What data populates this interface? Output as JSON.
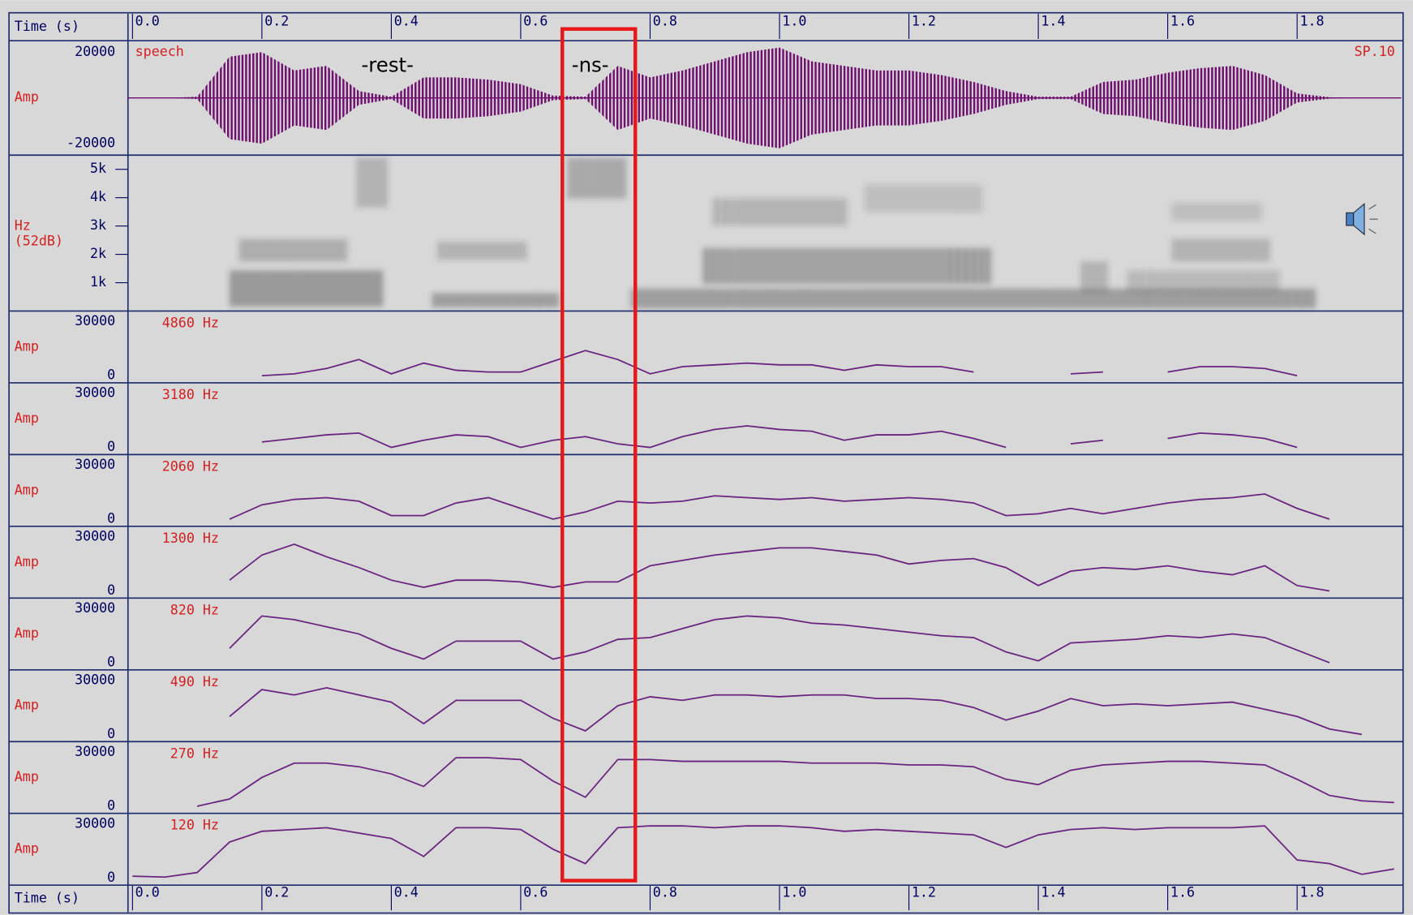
{
  "time_axis": {
    "label": "Time (s)",
    "xlim": [
      -0.007,
      1.961
    ],
    "xticks": [
      {
        "value": 0,
        "label": "0.0"
      },
      0.2,
      0.4,
      0.6,
      0.8,
      {
        "value": 1,
        "label": "1.0"
      },
      1.2,
      1.4,
      1.6,
      1.8
    ],
    "x": [
      0,
      0.05,
      0.1,
      0.15,
      0.2,
      0.25,
      0.3,
      0.35,
      0.4,
      0.45,
      0.5,
      0.55,
      0.6,
      0.65,
      0.7,
      0.75,
      0.8,
      0.85,
      0.9,
      0.95,
      1,
      1.05,
      1.1,
      1.15,
      1.2,
      1.25,
      1.3,
      1.35,
      1.4,
      1.45,
      1.5,
      1.55,
      1.6,
      1.65,
      1.7,
      1.75,
      1.8,
      1.85,
      1.9,
      1.95
    ]
  },
  "speech": {
    "name": "speech",
    "tag": "SP.10",
    "y_label": "Amp",
    "ylim": [
      -25000,
      25000
    ],
    "yticks": [
      20000,
      -20000
    ],
    "color": "#6e0f6e",
    "envelope": [
      0,
      0,
      500,
      18000,
      20000,
      12000,
      14000,
      3000,
      500,
      9000,
      9000,
      8000,
      6000,
      1000,
      500,
      14000,
      9000,
      12000,
      16000,
      20000,
      22000,
      16000,
      14000,
      12000,
      12000,
      10000,
      7000,
      3000,
      500,
      500,
      7000,
      8000,
      11000,
      13000,
      14000,
      10000,
      2000,
      300,
      0,
      0
    ]
  },
  "spectrogram": {
    "y_label": "Hz",
    "db_label": "(52dB)",
    "ylim": [
      0,
      5500
    ],
    "yticks": [
      {
        "value": 5000,
        "label": "5k"
      },
      {
        "value": 4000,
        "label": "4k"
      },
      {
        "value": 3000,
        "label": "3k"
      },
      {
        "value": 2000,
        "label": "2k"
      },
      {
        "value": 1000,
        "label": "1k"
      }
    ]
  },
  "bands": {
    "y_label": "Amp",
    "ylim": [
      -4000,
      36000
    ],
    "yticks": [
      30000,
      0
    ],
    "color": "#6a2480",
    "series": [
      {
        "name": "4860 Hz",
        "values": [
          null,
          null,
          null,
          null,
          0,
          1000,
          4000,
          9000,
          1000,
          7000,
          3000,
          2000,
          2000,
          8000,
          14000,
          9000,
          1000,
          5000,
          6000,
          7000,
          6000,
          6000,
          3000,
          6000,
          5000,
          5000,
          2000,
          null,
          null,
          1000,
          2000,
          null,
          2000,
          5000,
          5000,
          4000,
          0,
          null,
          null,
          null
        ]
      },
      {
        "name": "3180 Hz",
        "values": [
          null,
          null,
          null,
          null,
          3000,
          5000,
          7000,
          8000,
          0,
          4000,
          7000,
          6000,
          0,
          4000,
          6000,
          2000,
          0,
          6000,
          10000,
          12000,
          10000,
          9000,
          4000,
          7000,
          7000,
          9000,
          5000,
          0,
          null,
          2000,
          4000,
          null,
          5000,
          8000,
          7000,
          5000,
          0,
          null,
          null,
          null
        ]
      },
      {
        "name": "2060 Hz",
        "values": [
          null,
          null,
          null,
          0,
          8000,
          11000,
          12000,
          10000,
          2000,
          2000,
          9000,
          12000,
          6000,
          0,
          4000,
          10000,
          9000,
          10000,
          13000,
          12000,
          11000,
          12000,
          10000,
          11000,
          12000,
          11000,
          9000,
          2000,
          3000,
          6000,
          3000,
          6000,
          9000,
          11000,
          12000,
          14000,
          6000,
          0,
          null,
          null
        ]
      },
      {
        "name": "1300 Hz",
        "values": [
          null,
          null,
          null,
          6000,
          20000,
          26000,
          19000,
          13000,
          6000,
          2000,
          6000,
          6000,
          5000,
          2000,
          5000,
          5000,
          14000,
          17000,
          20000,
          22000,
          24000,
          24000,
          22000,
          20000,
          15000,
          17000,
          18000,
          13000,
          3000,
          11000,
          13000,
          12000,
          14000,
          11000,
          9000,
          14000,
          3000,
          0,
          null,
          null
        ]
      },
      {
        "name": "820 Hz",
        "values": [
          null,
          null,
          null,
          8000,
          26000,
          24000,
          20000,
          16000,
          8000,
          2000,
          12000,
          12000,
          12000,
          2000,
          6000,
          13000,
          14000,
          19000,
          24000,
          26000,
          25000,
          22000,
          21000,
          19000,
          17000,
          15000,
          14000,
          6000,
          1000,
          11000,
          12000,
          13000,
          15000,
          14000,
          16000,
          14000,
          7000,
          0,
          null,
          null
        ]
      },
      {
        "name": "490 Hz",
        "values": [
          null,
          null,
          null,
          10000,
          25000,
          22000,
          26000,
          22000,
          18000,
          6000,
          19000,
          19000,
          19000,
          9000,
          2000,
          16000,
          21000,
          19000,
          22000,
          22000,
          21000,
          22000,
          22000,
          20000,
          20000,
          19000,
          15000,
          8000,
          13000,
          20000,
          16000,
          17000,
          16000,
          17000,
          18000,
          14000,
          10000,
          3000,
          0,
          null
        ]
      },
      {
        "name": "270 Hz",
        "values": [
          null,
          null,
          0,
          4000,
          16000,
          24000,
          24000,
          22000,
          18000,
          11000,
          27000,
          27000,
          26000,
          14000,
          5000,
          26000,
          26000,
          25000,
          25000,
          25000,
          25000,
          24000,
          24000,
          24000,
          23000,
          23000,
          22000,
          15000,
          12000,
          20000,
          23000,
          24000,
          25000,
          25000,
          24000,
          23000,
          15000,
          6000,
          3000,
          2000
        ]
      },
      {
        "name": "120 Hz",
        "values": [
          1000,
          500,
          3000,
          20000,
          26000,
          27000,
          28000,
          25000,
          22000,
          12000,
          28000,
          28000,
          27000,
          16000,
          8000,
          28000,
          29000,
          29000,
          28000,
          29000,
          29000,
          28000,
          26000,
          27000,
          26000,
          25000,
          24000,
          17000,
          24000,
          27000,
          28000,
          27000,
          28000,
          28000,
          28000,
          29000,
          10000,
          8000,
          2000,
          5000
        ]
      }
    ]
  },
  "annotations": [
    "-rest-",
    "-ns-"
  ]
}
